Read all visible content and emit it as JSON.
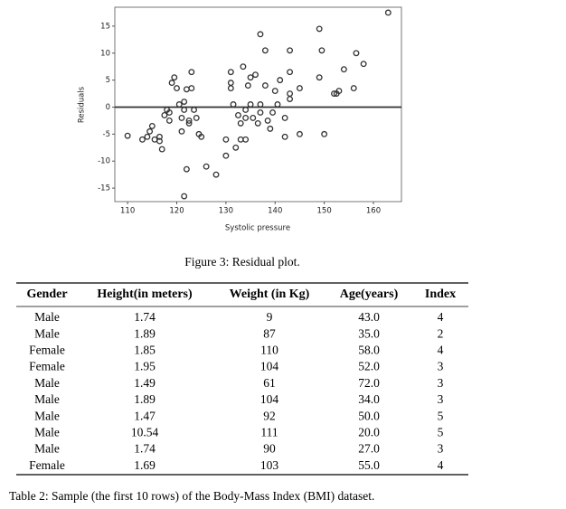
{
  "chart_data": {
    "type": "scatter",
    "xlabel": "Systolic pressure",
    "ylabel": "Residuals",
    "x": [
      110,
      113,
      114,
      114.5,
      115,
      115.5,
      116.5,
      116.5,
      117,
      117.5,
      118,
      118.5,
      118.5,
      119,
      119.5,
      120,
      120.5,
      121,
      121,
      121.5,
      121.5,
      122,
      122.5,
      122,
      121.5,
      122.5,
      123,
      123,
      123.5,
      124,
      124.5,
      125,
      126,
      128,
      130,
      130,
      131,
      131,
      131,
      131.5,
      132,
      132.5,
      133,
      133,
      133.5,
      134,
      134,
      134,
      134.5,
      135,
      135.5,
      135,
      136,
      136.5,
      137,
      137,
      137,
      138,
      138,
      138.5,
      139,
      139.5,
      140,
      140.5,
      141,
      142,
      142,
      143,
      143,
      143,
      143,
      145,
      145,
      149,
      149.5,
      149,
      150,
      152,
      152.5,
      153,
      154,
      156,
      156.5,
      158,
      163
    ],
    "y": [
      -5.3,
      -6,
      -5.5,
      -4.5,
      -3.5,
      -6,
      -5.5,
      -6.3,
      -7.8,
      -1.5,
      -0.5,
      -1,
      -2.5,
      4.5,
      5.5,
      3.5,
      0.5,
      -4.5,
      -2,
      -0.5,
      1,
      3.3,
      -2.5,
      -11.5,
      -16.5,
      -3,
      3.5,
      6.5,
      -0.5,
      -2,
      -5,
      -5.5,
      -11,
      -12.5,
      -6,
      -9,
      3.5,
      4.5,
      6.5,
      0.5,
      -7.5,
      -1.5,
      -3,
      -6,
      7.5,
      -2,
      -0.5,
      -6,
      4,
      0.5,
      -2,
      5.5,
      6,
      -3,
      -1,
      0.5,
      13.5,
      4,
      10.5,
      -2.5,
      -4,
      -1,
      3,
      0.5,
      5,
      -2,
      -5.5,
      6.5,
      10.5,
      2.5,
      1.5,
      -5,
      3.5,
      14.5,
      10.5,
      5.5,
      -5,
      2.5,
      2.5,
      3,
      7,
      3.5,
      10,
      8,
      17.5
    ],
    "color": "#333333",
    "reference_line": 0,
    "xlim": [
      107.4,
      165.7
    ],
    "ylim": [
      -17.5,
      18.5
    ],
    "xticks": [
      110,
      120,
      130,
      140,
      150,
      160
    ],
    "yticks": [
      -15,
      -10,
      -5,
      0,
      5,
      10,
      15
    ]
  },
  "figure_caption": "Figure 3: Residual plot.",
  "table": {
    "header": [
      "Gender",
      "Height(in meters)",
      "Weight (in Kg)",
      "Age(years)",
      "Index"
    ],
    "rows": [
      [
        "Male",
        "1.74",
        "9",
        "43.0",
        "4"
      ],
      [
        "Male",
        "1.89",
        "87",
        "35.0",
        "2"
      ],
      [
        "Female",
        "1.85",
        "110",
        "58.0",
        "4"
      ],
      [
        "Female",
        "1.95",
        "104",
        "52.0",
        "3"
      ],
      [
        "Male",
        "1.49",
        "61",
        "72.0",
        "3"
      ],
      [
        "Male",
        "1.89",
        "104",
        "34.0",
        "3"
      ],
      [
        "Male",
        "1.47",
        "92",
        "50.0",
        "5"
      ],
      [
        "Male",
        "10.54",
        "111",
        "20.0",
        "5"
      ],
      [
        "Male",
        "1.74",
        "90",
        "27.0",
        "3"
      ],
      [
        "Female",
        "1.69",
        "103",
        "55.0",
        "4"
      ]
    ]
  },
  "table_caption": "Table 2: Sample (the first 10 rows) of the Body-Mass Index (BMI) dataset."
}
